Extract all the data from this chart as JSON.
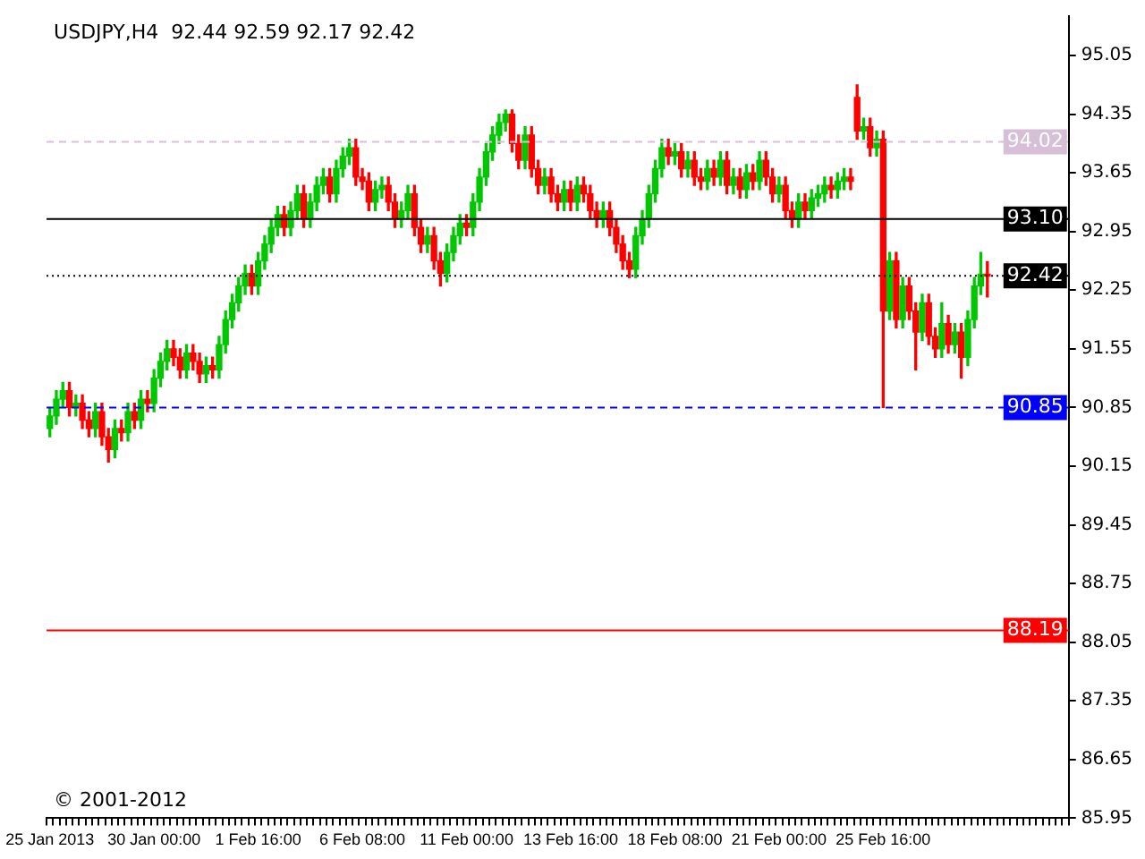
{
  "chart_data": {
    "type": "candlestick",
    "title": "USDJPY,H4  92.44 92.59 92.17 92.42",
    "annotations": [
      "© 2001-2012"
    ],
    "categories": [
      "25 Jan 2013",
      null,
      null,
      null,
      null,
      null,
      null,
      null,
      null,
      null,
      null,
      null,
      null,
      null,
      null,
      null,
      "30 Jan 00:00",
      null,
      null,
      null,
      null,
      null,
      null,
      null,
      null,
      null,
      null,
      null,
      null,
      null,
      null,
      null,
      "1 Feb 16:00",
      null,
      null,
      null,
      null,
      null,
      null,
      null,
      null,
      null,
      null,
      null,
      null,
      null,
      null,
      null,
      "6 Feb 08:00",
      null,
      null,
      null,
      null,
      null,
      null,
      null,
      null,
      null,
      null,
      null,
      null,
      null,
      null,
      null,
      "11 Feb 00:00",
      null,
      null,
      null,
      null,
      null,
      null,
      null,
      null,
      null,
      null,
      null,
      null,
      null,
      null,
      null,
      "13 Feb 16:00",
      null,
      null,
      null,
      null,
      null,
      null,
      null,
      null,
      null,
      null,
      null,
      null,
      null,
      null,
      null,
      "18 Feb 08:00",
      null,
      null,
      null,
      null,
      null,
      null,
      null,
      null,
      null,
      null,
      null,
      null,
      null,
      null,
      null,
      "21 Feb 00:00",
      null,
      null,
      null,
      null,
      null,
      null,
      null,
      null,
      null,
      null,
      null,
      null,
      null,
      null,
      null,
      "25 Feb 16:00",
      null,
      null,
      null,
      null,
      null,
      null,
      null,
      null,
      null,
      null,
      null,
      null,
      null,
      null,
      null,
      null
    ],
    "ohlc": [
      [
        90.6,
        90.85,
        90.5,
        90.75
      ],
      [
        90.75,
        91.05,
        90.65,
        90.95
      ],
      [
        90.95,
        91.15,
        90.85,
        91.05
      ],
      [
        91.05,
        91.15,
        90.75,
        90.85
      ],
      [
        90.85,
        91.0,
        90.75,
        90.9
      ],
      [
        90.9,
        91.0,
        90.6,
        90.7
      ],
      [
        90.7,
        90.8,
        90.5,
        90.6
      ],
      [
        90.6,
        90.9,
        90.5,
        90.8
      ],
      [
        90.8,
        90.9,
        90.4,
        90.5
      ],
      [
        90.5,
        90.6,
        90.2,
        90.35
      ],
      [
        90.35,
        90.7,
        90.25,
        90.6
      ],
      [
        90.6,
        90.7,
        90.45,
        90.55
      ],
      [
        90.55,
        90.9,
        90.45,
        90.8
      ],
      [
        90.8,
        90.9,
        90.6,
        90.7
      ],
      [
        90.7,
        91.05,
        90.6,
        90.95
      ],
      [
        90.95,
        91.05,
        90.8,
        90.9
      ],
      [
        90.9,
        91.3,
        90.8,
        91.2
      ],
      [
        91.2,
        91.5,
        91.1,
        91.4
      ],
      [
        91.4,
        91.65,
        91.3,
        91.55
      ],
      [
        91.55,
        91.65,
        91.35,
        91.45
      ],
      [
        91.45,
        91.55,
        91.2,
        91.3
      ],
      [
        91.3,
        91.6,
        91.2,
        91.5
      ],
      [
        91.5,
        91.6,
        91.3,
        91.4
      ],
      [
        91.4,
        91.5,
        91.15,
        91.25
      ],
      [
        91.25,
        91.45,
        91.15,
        91.35
      ],
      [
        91.35,
        91.45,
        91.2,
        91.3
      ],
      [
        91.3,
        91.7,
        91.2,
        91.6
      ],
      [
        91.6,
        92.0,
        91.5,
        91.9
      ],
      [
        91.9,
        92.2,
        91.8,
        92.1
      ],
      [
        92.1,
        92.4,
        92.0,
        92.3
      ],
      [
        92.3,
        92.55,
        92.2,
        92.45
      ],
      [
        92.45,
        92.55,
        92.2,
        92.3
      ],
      [
        92.3,
        92.7,
        92.2,
        92.6
      ],
      [
        92.6,
        92.9,
        92.5,
        92.8
      ],
      [
        92.8,
        93.1,
        92.7,
        93.0
      ],
      [
        93.0,
        93.25,
        92.9,
        93.15
      ],
      [
        93.15,
        93.25,
        92.9,
        93.0
      ],
      [
        93.0,
        93.3,
        92.9,
        93.2
      ],
      [
        93.2,
        93.5,
        93.1,
        93.4
      ],
      [
        93.4,
        93.5,
        93.0,
        93.1
      ],
      [
        93.1,
        93.4,
        93.0,
        93.3
      ],
      [
        93.3,
        93.6,
        93.2,
        93.5
      ],
      [
        93.5,
        93.7,
        93.4,
        93.6
      ],
      [
        93.6,
        93.7,
        93.3,
        93.4
      ],
      [
        93.4,
        93.8,
        93.3,
        93.7
      ],
      [
        93.7,
        93.95,
        93.6,
        93.85
      ],
      [
        93.85,
        94.05,
        93.75,
        93.95
      ],
      [
        93.95,
        94.05,
        93.5,
        93.6
      ],
      [
        93.6,
        93.7,
        93.45,
        93.55
      ],
      [
        93.55,
        93.65,
        93.2,
        93.3
      ],
      [
        93.3,
        93.55,
        93.2,
        93.45
      ],
      [
        93.45,
        93.6,
        93.35,
        93.5
      ],
      [
        93.5,
        93.6,
        93.2,
        93.3
      ],
      [
        93.3,
        93.4,
        93.0,
        93.1
      ],
      [
        93.1,
        93.3,
        93.0,
        93.2
      ],
      [
        93.2,
        93.5,
        93.1,
        93.4
      ],
      [
        93.4,
        93.5,
        92.9,
        93.0
      ],
      [
        93.0,
        93.1,
        92.7,
        92.8
      ],
      [
        92.8,
        93.0,
        92.7,
        92.9
      ],
      [
        92.9,
        93.0,
        92.5,
        92.6
      ],
      [
        92.6,
        92.7,
        92.3,
        92.45
      ],
      [
        92.45,
        92.8,
        92.35,
        92.7
      ],
      [
        92.7,
        93.0,
        92.6,
        92.9
      ],
      [
        92.9,
        93.15,
        92.8,
        93.05
      ],
      [
        93.05,
        93.15,
        92.9,
        93.0
      ],
      [
        93.0,
        93.4,
        92.9,
        93.3
      ],
      [
        93.3,
        93.7,
        93.2,
        93.6
      ],
      [
        93.6,
        94.0,
        93.5,
        93.9
      ],
      [
        93.9,
        94.2,
        93.8,
        94.1
      ],
      [
        94.1,
        94.35,
        94.0,
        94.25
      ],
      [
        94.25,
        94.4,
        94.15,
        94.35
      ],
      [
        94.35,
        94.4,
        93.9,
        94.0
      ],
      [
        94.0,
        94.1,
        93.7,
        93.8
      ],
      [
        93.8,
        94.2,
        93.7,
        94.1
      ],
      [
        94.1,
        94.2,
        93.6,
        93.7
      ],
      [
        93.7,
        93.8,
        93.4,
        93.5
      ],
      [
        93.5,
        93.7,
        93.4,
        93.6
      ],
      [
        93.6,
        93.7,
        93.3,
        93.4
      ],
      [
        93.4,
        93.5,
        93.2,
        93.3
      ],
      [
        93.3,
        93.55,
        93.2,
        93.45
      ],
      [
        93.45,
        93.55,
        93.2,
        93.3
      ],
      [
        93.3,
        93.6,
        93.2,
        93.5
      ],
      [
        93.5,
        93.6,
        93.3,
        93.4
      ],
      [
        93.4,
        93.5,
        93.1,
        93.2
      ],
      [
        93.2,
        93.3,
        93.0,
        93.1
      ],
      [
        93.1,
        93.3,
        93.0,
        93.2
      ],
      [
        93.2,
        93.3,
        92.9,
        93.0
      ],
      [
        93.0,
        93.1,
        92.7,
        92.8
      ],
      [
        92.8,
        92.9,
        92.5,
        92.6
      ],
      [
        92.6,
        92.7,
        92.4,
        92.5
      ],
      [
        92.5,
        93.0,
        92.4,
        92.9
      ],
      [
        92.9,
        93.2,
        92.8,
        93.1
      ],
      [
        93.1,
        93.5,
        93.0,
        93.4
      ],
      [
        93.4,
        93.8,
        93.3,
        93.7
      ],
      [
        93.7,
        94.05,
        93.6,
        93.95
      ],
      [
        93.95,
        94.05,
        93.75,
        93.85
      ],
      [
        93.85,
        94.0,
        93.75,
        93.9
      ],
      [
        93.9,
        94.0,
        93.6,
        93.7
      ],
      [
        93.7,
        93.9,
        93.6,
        93.8
      ],
      [
        93.8,
        93.9,
        93.5,
        93.6
      ],
      [
        93.6,
        93.7,
        93.45,
        93.55
      ],
      [
        93.55,
        93.8,
        93.45,
        93.7
      ],
      [
        93.7,
        93.8,
        93.5,
        93.6
      ],
      [
        93.6,
        93.9,
        93.5,
        93.8
      ],
      [
        93.8,
        93.9,
        93.4,
        93.5
      ],
      [
        93.5,
        93.7,
        93.4,
        93.6
      ],
      [
        93.6,
        93.7,
        93.35,
        93.45
      ],
      [
        93.45,
        93.75,
        93.35,
        93.65
      ],
      [
        93.65,
        93.75,
        93.45,
        93.55
      ],
      [
        93.55,
        93.9,
        93.45,
        93.8
      ],
      [
        93.8,
        93.9,
        93.5,
        93.6
      ],
      [
        93.6,
        93.7,
        93.3,
        93.4
      ],
      [
        93.4,
        93.6,
        93.3,
        93.5
      ],
      [
        93.5,
        93.6,
        93.1,
        93.2
      ],
      [
        93.2,
        93.3,
        93.0,
        93.1
      ],
      [
        93.1,
        93.4,
        93.0,
        93.3
      ],
      [
        93.3,
        93.4,
        93.1,
        93.2
      ],
      [
        93.2,
        93.45,
        93.1,
        93.35
      ],
      [
        93.35,
        93.5,
        93.25,
        93.4
      ],
      [
        93.4,
        93.6,
        93.3,
        93.5
      ],
      [
        93.5,
        93.6,
        93.35,
        93.45
      ],
      [
        93.45,
        93.65,
        93.35,
        93.55
      ],
      [
        93.55,
        93.7,
        93.45,
        93.6
      ],
      [
        93.6,
        93.7,
        93.45,
        93.55
      ],
      [
        94.55,
        94.7,
        94.05,
        94.15
      ],
      [
        94.15,
        94.3,
        94.05,
        94.2
      ],
      [
        94.2,
        94.3,
        93.85,
        93.95
      ],
      [
        93.95,
        94.15,
        93.85,
        94.05
      ],
      [
        94.05,
        94.15,
        90.85,
        92.0
      ],
      [
        92.0,
        92.7,
        91.9,
        92.6
      ],
      [
        92.6,
        92.7,
        91.8,
        91.9
      ],
      [
        91.9,
        92.4,
        91.8,
        92.3
      ],
      [
        92.3,
        92.4,
        91.9,
        92.0
      ],
      [
        92.0,
        92.1,
        91.3,
        91.75
      ],
      [
        91.75,
        92.2,
        91.65,
        92.1
      ],
      [
        92.1,
        92.2,
        91.6,
        91.7
      ],
      [
        91.7,
        91.8,
        91.45,
        91.55
      ],
      [
        91.55,
        92.1,
        91.45,
        91.85
      ],
      [
        91.85,
        91.95,
        91.5,
        91.6
      ],
      [
        91.6,
        91.85,
        91.5,
        91.75
      ],
      [
        91.75,
        91.85,
        91.2,
        91.45
      ],
      [
        91.45,
        92.0,
        91.35,
        91.9
      ],
      [
        91.9,
        92.4,
        91.8,
        92.3
      ],
      [
        92.3,
        92.7,
        92.2,
        92.44
      ],
      [
        92.44,
        92.59,
        92.17,
        92.42
      ]
    ],
    "ylim": [
      85.95,
      95.52
    ],
    "yticks": [
      85.95,
      86.65,
      87.35,
      88.05,
      88.75,
      89.45,
      90.15,
      90.85,
      91.55,
      92.25,
      92.95,
      93.65,
      94.35,
      95.05
    ],
    "ref_lines": [
      {
        "axis": "y",
        "value": 94.02,
        "label": "94.02",
        "color": "#d8bfd8",
        "line_style": "dashed"
      },
      {
        "axis": "y",
        "value": 93.1,
        "label": "93.10",
        "color": "#000000",
        "line_style": "solid"
      },
      {
        "axis": "y",
        "value": 92.42,
        "label": "92.42",
        "color": "#000000",
        "line_style": "dotted"
      },
      {
        "axis": "y",
        "value": 90.85,
        "label": "90.85",
        "color": "#0000ff",
        "line_style": "dashed"
      },
      {
        "axis": "y",
        "value": 88.19,
        "label": "88.19",
        "color": "#ff0000",
        "line_style": "solid"
      }
    ],
    "grid": false,
    "legend": false
  }
}
